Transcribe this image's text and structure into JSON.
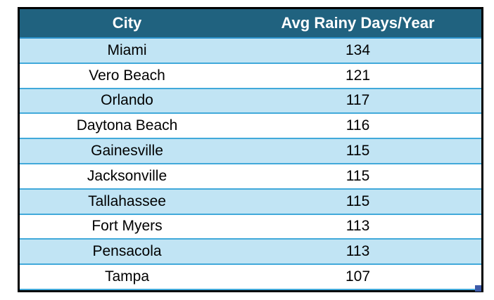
{
  "table": {
    "header": {
      "city_label": "City",
      "value_label": "Avg Rainy Days/Year"
    },
    "rows": [
      {
        "city": "Miami",
        "value": "134"
      },
      {
        "city": "Vero Beach",
        "value": "121"
      },
      {
        "city": "Orlando",
        "value": "117"
      },
      {
        "city": "Daytona Beach",
        "value": "116"
      },
      {
        "city": "Gainesville",
        "value": "115"
      },
      {
        "city": "Jacksonville",
        "value": "115"
      },
      {
        "city": "Tallahassee",
        "value": "115"
      },
      {
        "city": "Fort Myers",
        "value": "113"
      },
      {
        "city": "Pensacola",
        "value": "113"
      },
      {
        "city": "Tampa",
        "value": "107"
      }
    ]
  },
  "chart_data": {
    "type": "table",
    "title": "",
    "columns": [
      "City",
      "Avg Rainy Days/Year"
    ],
    "categories": [
      "Miami",
      "Vero Beach",
      "Orlando",
      "Daytona Beach",
      "Gainesville",
      "Jacksonville",
      "Tallahassee",
      "Fort Myers",
      "Pensacola",
      "Tampa"
    ],
    "values": [
      134,
      121,
      117,
      116,
      115,
      115,
      115,
      113,
      113,
      107
    ],
    "layout": {
      "alternating_rows": true,
      "header_position": "top"
    }
  },
  "colors": {
    "header_bg": "#20627F",
    "header_text": "#FFFFFF",
    "row_alt_bg": "#C1E4F4",
    "row_bg": "#FFFFFF",
    "row_separator": "#41A9DA",
    "outer_border": "#000000",
    "resize_handle": "#3D5BA9"
  },
  "icons": {
    "resize_handle": "corner-resize-handle"
  }
}
